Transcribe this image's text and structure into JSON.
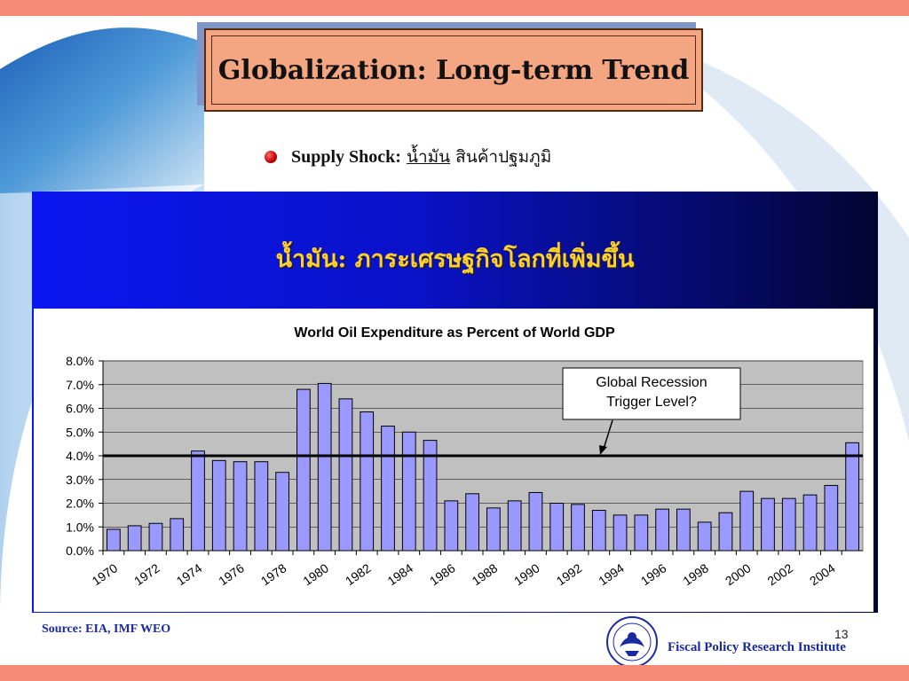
{
  "slide": {
    "title": "Globalization: Long-term Trend",
    "bullet_label": "Supply Shock:",
    "bullet_oil": "น้ำมัน",
    "bullet_commodity": "สินค้าปฐมภูมิ",
    "panel_title": "น้ำมัน: ภาระเศรษฐกิจโลกที่เพิ่มขึ้น",
    "source": "Source: EIA, IMF WEO",
    "page_number": "13",
    "institute": "Fiscal Policy Research Institute"
  },
  "colors": {
    "accent_stripe": "#f58a76",
    "bar_fill": "#9999ff",
    "plot_bg": "#c0c0c0",
    "panel_title": "#ffd02a"
  },
  "chart_data": {
    "type": "bar",
    "title": "World Oil Expenditure as Percent of World GDP",
    "categories": [
      "1970",
      "1971",
      "1972",
      "1973",
      "1974",
      "1975",
      "1976",
      "1977",
      "1978",
      "1979",
      "1980",
      "1981",
      "1982",
      "1983",
      "1984",
      "1985",
      "1986",
      "1987",
      "1988",
      "1989",
      "1990",
      "1991",
      "1992",
      "1993",
      "1994",
      "1995",
      "1996",
      "1997",
      "1998",
      "1999",
      "2000",
      "2001",
      "2002",
      "2003",
      "2004",
      "2005"
    ],
    "x_tick_labels": [
      "1970",
      "1972",
      "1974",
      "1976",
      "1978",
      "1980",
      "1982",
      "1984",
      "1986",
      "1988",
      "1990",
      "1992",
      "1994",
      "1996",
      "1998",
      "2000",
      "2002",
      "2004"
    ],
    "values": [
      0.9,
      1.05,
      1.15,
      1.35,
      4.2,
      3.8,
      3.75,
      3.75,
      3.3,
      6.8,
      7.05,
      6.4,
      5.85,
      5.25,
      5.0,
      4.65,
      2.1,
      2.4,
      1.8,
      2.1,
      2.45,
      2.0,
      1.95,
      1.7,
      1.5,
      1.5,
      1.75,
      1.75,
      1.2,
      1.6,
      2.5,
      2.2,
      2.2,
      2.35,
      2.75,
      4.55
    ],
    "ylim": [
      0,
      8
    ],
    "y_ticks": [
      "0.0%",
      "1.0%",
      "2.0%",
      "3.0%",
      "4.0%",
      "5.0%",
      "6.0%",
      "7.0%",
      "8.0%"
    ],
    "threshold": 4.0,
    "annotation": {
      "line1": "Global Recession",
      "line2": "Trigger Level?"
    },
    "grid": true,
    "legend": "none"
  }
}
